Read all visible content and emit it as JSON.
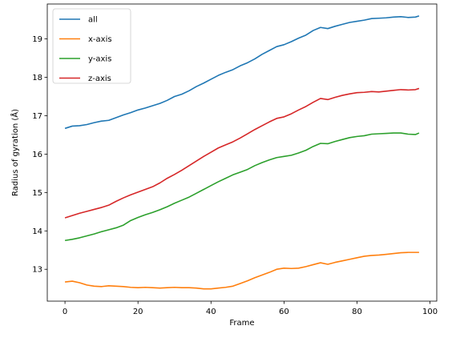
{
  "chart_data": {
    "type": "line",
    "title": "",
    "xlabel": "Frame",
    "ylabel": "Radius of gyration (Å)",
    "xlim": [
      -4.85,
      101.85
    ],
    "ylim": [
      12.17,
      19.91
    ],
    "xticks": [
      0,
      20,
      40,
      60,
      80,
      100
    ],
    "yticks": [
      13,
      14,
      15,
      16,
      17,
      18,
      19
    ],
    "grid": false,
    "legend": "top-left",
    "series": [
      {
        "name": "all",
        "color": "#1f77b4",
        "points": [
          [
            0,
            16.67
          ],
          [
            2,
            16.73
          ],
          [
            4,
            16.74
          ],
          [
            6,
            16.77
          ],
          [
            8,
            16.82
          ],
          [
            10,
            16.86
          ],
          [
            12,
            16.88
          ],
          [
            14,
            16.95
          ],
          [
            16,
            17.02
          ],
          [
            18,
            17.08
          ],
          [
            20,
            17.15
          ],
          [
            22,
            17.2
          ],
          [
            24,
            17.26
          ],
          [
            26,
            17.32
          ],
          [
            28,
            17.4
          ],
          [
            30,
            17.5
          ],
          [
            32,
            17.56
          ],
          [
            34,
            17.65
          ],
          [
            36,
            17.76
          ],
          [
            38,
            17.85
          ],
          [
            40,
            17.95
          ],
          [
            42,
            18.05
          ],
          [
            44,
            18.13
          ],
          [
            46,
            18.2
          ],
          [
            48,
            18.3
          ],
          [
            50,
            18.38
          ],
          [
            52,
            18.48
          ],
          [
            54,
            18.6
          ],
          [
            56,
            18.7
          ],
          [
            58,
            18.8
          ],
          [
            60,
            18.85
          ],
          [
            62,
            18.93
          ],
          [
            64,
            19.02
          ],
          [
            66,
            19.1
          ],
          [
            68,
            19.22
          ],
          [
            70,
            19.3
          ],
          [
            72,
            19.27
          ],
          [
            74,
            19.33
          ],
          [
            76,
            19.38
          ],
          [
            78,
            19.43
          ],
          [
            80,
            19.46
          ],
          [
            82,
            19.49
          ],
          [
            84,
            19.53
          ],
          [
            86,
            19.54
          ],
          [
            88,
            19.55
          ],
          [
            90,
            19.57
          ],
          [
            92,
            19.58
          ],
          [
            94,
            19.56
          ],
          [
            96,
            19.57
          ],
          [
            97,
            19.6
          ]
        ]
      },
      {
        "name": "x-axis",
        "color": "#ff7f0e",
        "points": [
          [
            0,
            12.67
          ],
          [
            2,
            12.69
          ],
          [
            4,
            12.65
          ],
          [
            6,
            12.59
          ],
          [
            8,
            12.56
          ],
          [
            10,
            12.55
          ],
          [
            12,
            12.57
          ],
          [
            14,
            12.56
          ],
          [
            16,
            12.55
          ],
          [
            18,
            12.53
          ],
          [
            20,
            12.52
          ],
          [
            22,
            12.53
          ],
          [
            24,
            12.52
          ],
          [
            26,
            12.51
          ],
          [
            28,
            12.52
          ],
          [
            30,
            12.53
          ],
          [
            32,
            12.52
          ],
          [
            34,
            12.52
          ],
          [
            36,
            12.51
          ],
          [
            38,
            12.49
          ],
          [
            40,
            12.49
          ],
          [
            42,
            12.51
          ],
          [
            44,
            12.53
          ],
          [
            46,
            12.56
          ],
          [
            48,
            12.63
          ],
          [
            50,
            12.7
          ],
          [
            52,
            12.78
          ],
          [
            54,
            12.85
          ],
          [
            56,
            12.92
          ],
          [
            58,
            13.0
          ],
          [
            60,
            13.03
          ],
          [
            62,
            13.02
          ],
          [
            64,
            13.03
          ],
          [
            66,
            13.07
          ],
          [
            68,
            13.12
          ],
          [
            70,
            13.17
          ],
          [
            72,
            13.13
          ],
          [
            74,
            13.18
          ],
          [
            76,
            13.22
          ],
          [
            78,
            13.26
          ],
          [
            80,
            13.3
          ],
          [
            82,
            13.34
          ],
          [
            84,
            13.36
          ],
          [
            86,
            13.37
          ],
          [
            88,
            13.39
          ],
          [
            90,
            13.41
          ],
          [
            92,
            13.43
          ],
          [
            94,
            13.44
          ],
          [
            96,
            13.44
          ],
          [
            97,
            13.44
          ]
        ]
      },
      {
        "name": "y-axis",
        "color": "#2ca02c",
        "points": [
          [
            0,
            13.75
          ],
          [
            2,
            13.78
          ],
          [
            4,
            13.82
          ],
          [
            6,
            13.87
          ],
          [
            8,
            13.92
          ],
          [
            10,
            13.98
          ],
          [
            12,
            14.03
          ],
          [
            14,
            14.08
          ],
          [
            16,
            14.15
          ],
          [
            18,
            14.27
          ],
          [
            20,
            14.35
          ],
          [
            22,
            14.42
          ],
          [
            24,
            14.48
          ],
          [
            26,
            14.55
          ],
          [
            28,
            14.63
          ],
          [
            30,
            14.72
          ],
          [
            32,
            14.8
          ],
          [
            34,
            14.88
          ],
          [
            36,
            14.98
          ],
          [
            38,
            15.08
          ],
          [
            40,
            15.18
          ],
          [
            42,
            15.28
          ],
          [
            44,
            15.37
          ],
          [
            46,
            15.46
          ],
          [
            48,
            15.53
          ],
          [
            50,
            15.6
          ],
          [
            52,
            15.7
          ],
          [
            54,
            15.78
          ],
          [
            56,
            15.85
          ],
          [
            58,
            15.91
          ],
          [
            60,
            15.94
          ],
          [
            62,
            15.97
          ],
          [
            64,
            16.03
          ],
          [
            66,
            16.1
          ],
          [
            68,
            16.2
          ],
          [
            70,
            16.28
          ],
          [
            72,
            16.27
          ],
          [
            74,
            16.33
          ],
          [
            76,
            16.38
          ],
          [
            78,
            16.43
          ],
          [
            80,
            16.46
          ],
          [
            82,
            16.48
          ],
          [
            84,
            16.52
          ],
          [
            86,
            16.53
          ],
          [
            88,
            16.54
          ],
          [
            90,
            16.55
          ],
          [
            92,
            16.55
          ],
          [
            94,
            16.52
          ],
          [
            96,
            16.51
          ],
          [
            97,
            16.55
          ]
        ]
      },
      {
        "name": "z-axis",
        "color": "#d62728",
        "points": [
          [
            0,
            14.34
          ],
          [
            2,
            14.4
          ],
          [
            4,
            14.46
          ],
          [
            6,
            14.51
          ],
          [
            8,
            14.56
          ],
          [
            10,
            14.61
          ],
          [
            12,
            14.67
          ],
          [
            14,
            14.77
          ],
          [
            16,
            14.86
          ],
          [
            18,
            14.94
          ],
          [
            20,
            15.01
          ],
          [
            22,
            15.08
          ],
          [
            24,
            15.15
          ],
          [
            26,
            15.25
          ],
          [
            28,
            15.37
          ],
          [
            30,
            15.47
          ],
          [
            32,
            15.58
          ],
          [
            34,
            15.7
          ],
          [
            36,
            15.82
          ],
          [
            38,
            15.94
          ],
          [
            40,
            16.05
          ],
          [
            42,
            16.16
          ],
          [
            44,
            16.24
          ],
          [
            46,
            16.32
          ],
          [
            48,
            16.42
          ],
          [
            50,
            16.53
          ],
          [
            52,
            16.64
          ],
          [
            54,
            16.74
          ],
          [
            56,
            16.84
          ],
          [
            58,
            16.93
          ],
          [
            60,
            16.97
          ],
          [
            62,
            17.05
          ],
          [
            64,
            17.15
          ],
          [
            66,
            17.24
          ],
          [
            68,
            17.35
          ],
          [
            70,
            17.45
          ],
          [
            72,
            17.42
          ],
          [
            74,
            17.48
          ],
          [
            76,
            17.53
          ],
          [
            78,
            17.57
          ],
          [
            80,
            17.6
          ],
          [
            82,
            17.61
          ],
          [
            84,
            17.63
          ],
          [
            86,
            17.62
          ],
          [
            88,
            17.64
          ],
          [
            90,
            17.66
          ],
          [
            92,
            17.68
          ],
          [
            94,
            17.67
          ],
          [
            96,
            17.68
          ],
          [
            97,
            17.71
          ]
        ]
      }
    ]
  }
}
